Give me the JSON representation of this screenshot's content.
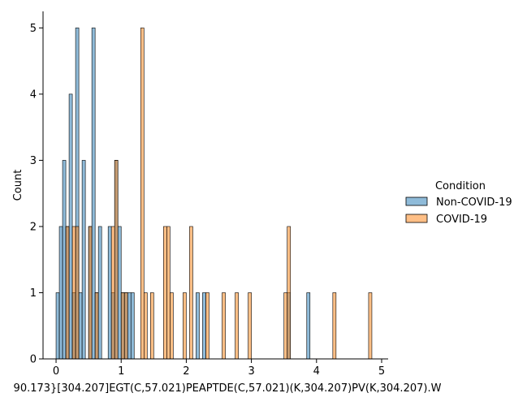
{
  "chart_data": {
    "type": "bar",
    "xlabel": "90.173}[304.207]EGT(C,57.021)PEAPTDE(C,57.021)(K,304.207)PV(K,304.207).W",
    "ylabel": "Count",
    "xlim": [
      -0.2,
      5.1
    ],
    "ylim": [
      0,
      5.25
    ],
    "grid": false,
    "x_ticks": [
      0,
      1,
      2,
      3,
      4,
      5
    ],
    "y_ticks": [
      0,
      1,
      2,
      3,
      4,
      5
    ],
    "bin_width": 0.05,
    "legend": {
      "title": "Condition",
      "placement": "right",
      "entries": [
        "Non-COVID-19",
        "COVID-19"
      ]
    },
    "series": [
      {
        "name": "Non-COVID-19",
        "color": "#1f77b4",
        "fill_opacity": 0.5,
        "x": [
          0.0,
          0.05,
          0.1,
          0.15,
          0.2,
          0.25,
          0.3,
          0.35,
          0.4,
          0.5,
          0.55,
          0.6,
          0.65,
          0.8,
          0.85,
          0.9,
          0.95,
          1.0,
          1.05,
          1.1,
          1.15,
          2.15,
          2.25,
          3.55,
          3.85
        ],
        "values": [
          1,
          2,
          3,
          2,
          4,
          1,
          5,
          1,
          3,
          2,
          5,
          1,
          2,
          2,
          1,
          3,
          2,
          1,
          1,
          1,
          1,
          1,
          1,
          1,
          1
        ]
      },
      {
        "name": "COVID-19",
        "color": "#ff7f0e",
        "fill_opacity": 0.5,
        "x": [
          0.15,
          0.25,
          0.3,
          0.5,
          0.6,
          0.85,
          0.9,
          1.0,
          1.05,
          1.3,
          1.35,
          1.45,
          1.65,
          1.7,
          1.75,
          1.95,
          2.05,
          2.3,
          2.55,
          2.75,
          2.95,
          3.5,
          3.55,
          4.25,
          4.8
        ],
        "values": [
          2,
          2,
          2,
          2,
          1,
          2,
          3,
          1,
          1,
          5,
          1,
          1,
          2,
          2,
          1,
          1,
          2,
          1,
          1,
          1,
          1,
          1,
          2,
          1,
          1
        ]
      }
    ]
  }
}
